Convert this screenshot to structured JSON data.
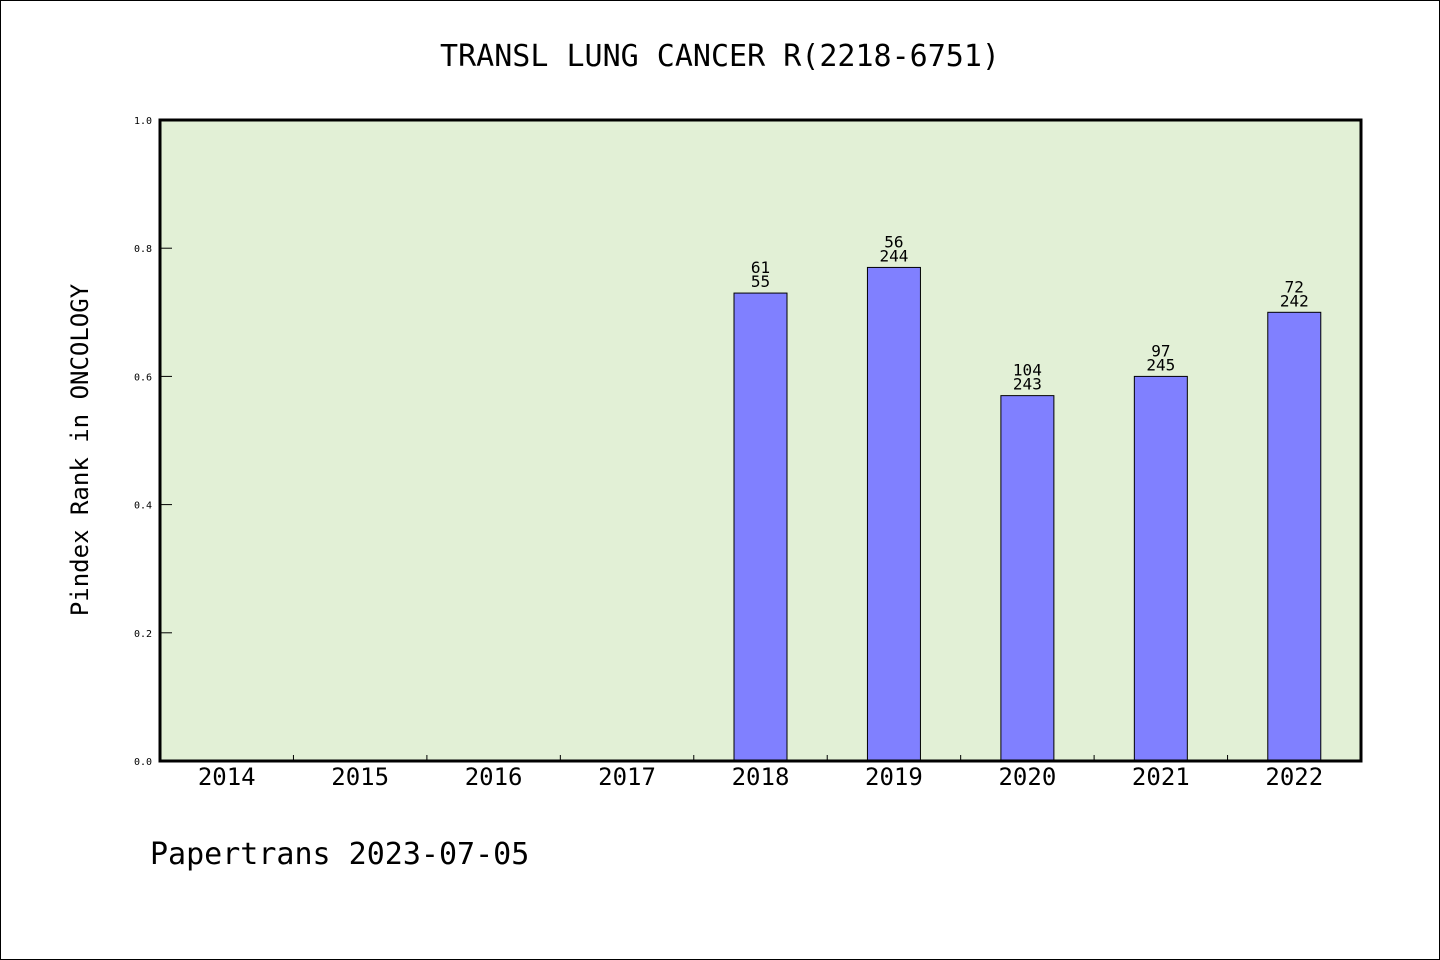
{
  "chart_data": {
    "type": "bar",
    "title": "TRANSL LUNG CANCER R(2218-6751)",
    "xlabel": "",
    "ylabel": "Pindex Rank in ONCOLOGY",
    "ylim": [
      0,
      1.0
    ],
    "yticks": [
      "0.0",
      "0.2",
      "0.4",
      "0.6",
      "0.8",
      "1.0"
    ],
    "categories": [
      "2014",
      "2015",
      "2016",
      "2017",
      "2018",
      "2019",
      "2020",
      "2021",
      "2022"
    ],
    "values": [
      null,
      null,
      null,
      null,
      0.73,
      0.77,
      0.57,
      0.6,
      0.7
    ],
    "label_top": [
      "",
      "",
      "",
      "",
      "61",
      "56",
      "104",
      "97",
      "72"
    ],
    "label_bottom": [
      "",
      "",
      "",
      "",
      "55",
      "244",
      "243",
      "245",
      "242"
    ],
    "bar_color": "#8080ff",
    "plot_background": "#e2f0d6",
    "grid": false
  },
  "footer": "Papertrans 2023-07-05"
}
